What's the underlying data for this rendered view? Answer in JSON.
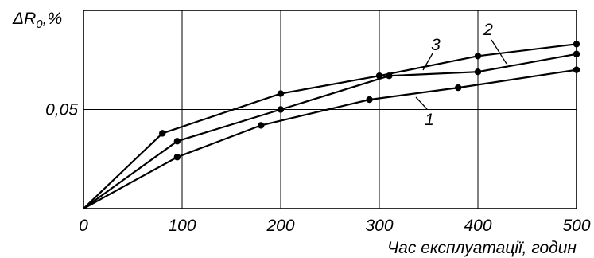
{
  "chart_data": {
    "type": "line",
    "title": "",
    "xlabel": "Час експлуатації, годин",
    "ylabel": "ΔR",
    "ylabel_subscript": "0",
    "ylabel_suffix": ",%",
    "x_ticks": [
      "0",
      "100",
      "200",
      "300",
      "400",
      "500"
    ],
    "y_ticks": [
      "0,05"
    ],
    "xlim": [
      0,
      500
    ],
    "ylim": [
      0,
      0.1
    ],
    "grid": true,
    "line_color": "#000000",
    "series": [
      {
        "name": "1",
        "x": [
          0,
          95,
          180,
          290,
          380,
          500
        ],
        "y": [
          0,
          0.026,
          0.042,
          0.055,
          0.061,
          0.07
        ]
      },
      {
        "name": "2",
        "x": [
          0,
          95,
          200,
          310,
          400,
          500
        ],
        "y": [
          0,
          0.034,
          0.05,
          0.067,
          0.069,
          0.078
        ]
      },
      {
        "name": "3",
        "x": [
          0,
          80,
          200,
          300,
          400,
          500
        ],
        "y": [
          0,
          0.038,
          0.058,
          0.067,
          0.077,
          0.083
        ]
      }
    ]
  }
}
